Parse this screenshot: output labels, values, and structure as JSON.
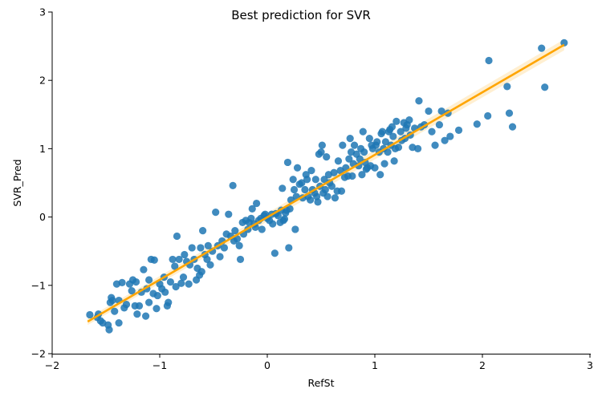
{
  "chart_data": {
    "type": "scatter",
    "title": "Best prediction for SVR",
    "xlabel": "RefSt",
    "ylabel": "SVR_Pred",
    "xlim": [
      -2,
      3
    ],
    "ylim": [
      -2,
      3
    ],
    "xticks": [
      -2,
      -1,
      0,
      1,
      2,
      3
    ],
    "yticks": [
      -2,
      -1,
      0,
      1,
      2,
      3
    ],
    "xtick_labels": [
      "−2",
      "−1",
      "0",
      "1",
      "2",
      "3"
    ],
    "ytick_labels": [
      "−2",
      "−1",
      "0",
      "1",
      "2",
      "3"
    ],
    "grid": false,
    "colors": {
      "points": "#1f77b4",
      "regression": "#ffa500",
      "ci_band": "#ffd27a"
    },
    "points": [
      [
        -1.65,
        -1.43
      ],
      [
        -1.58,
        -1.47
      ],
      [
        -1.55,
        -1.52
      ],
      [
        -1.57,
        -1.42
      ],
      [
        -1.53,
        -1.55
      ],
      [
        -1.48,
        -1.58
      ],
      [
        -1.47,
        -1.65
      ],
      [
        -1.46,
        -1.25
      ],
      [
        -1.45,
        -1.18
      ],
      [
        -1.44,
        -1.22
      ],
      [
        -1.42,
        -1.38
      ],
      [
        -1.4,
        -0.98
      ],
      [
        -1.38,
        -1.55
      ],
      [
        -1.38,
        -1.22
      ],
      [
        -1.35,
        -0.96
      ],
      [
        -1.33,
        -1.33
      ],
      [
        -1.31,
        -1.28
      ],
      [
        -1.28,
        -0.98
      ],
      [
        -1.26,
        -1.08
      ],
      [
        -1.25,
        -0.92
      ],
      [
        -1.23,
        -1.3
      ],
      [
        -1.22,
        -0.95
      ],
      [
        -1.21,
        -1.42
      ],
      [
        -1.19,
        -1.3
      ],
      [
        -1.17,
        -1.1
      ],
      [
        -1.15,
        -0.77
      ],
      [
        -1.13,
        -1.45
      ],
      [
        -1.12,
        -1.05
      ],
      [
        -1.1,
        -0.92
      ],
      [
        -1.1,
        -1.25
      ],
      [
        -1.08,
        -0.62
      ],
      [
        -1.06,
        -1.12
      ],
      [
        -1.05,
        -0.63
      ],
      [
        -1.03,
        -1.34
      ],
      [
        -1.02,
        -1.15
      ],
      [
        -1.0,
        -0.98
      ],
      [
        -0.98,
        -1.05
      ],
      [
        -0.96,
        -0.88
      ],
      [
        -0.95,
        -1.1
      ],
      [
        -0.93,
        -1.3
      ],
      [
        -0.92,
        -1.25
      ],
      [
        -0.9,
        -0.95
      ],
      [
        -0.88,
        -0.62
      ],
      [
        -0.86,
        -0.72
      ],
      [
        -0.85,
        -1.02
      ],
      [
        -0.84,
        -0.28
      ],
      [
        -0.82,
        -0.62
      ],
      [
        -0.8,
        -0.97
      ],
      [
        -0.78,
        -0.88
      ],
      [
        -0.77,
        -0.55
      ],
      [
        -0.75,
        -0.65
      ],
      [
        -0.73,
        -0.98
      ],
      [
        -0.72,
        -0.7
      ],
      [
        -0.7,
        -0.45
      ],
      [
        -0.68,
        -0.62
      ],
      [
        -0.66,
        -0.92
      ],
      [
        -0.65,
        -0.75
      ],
      [
        -0.63,
        -0.85
      ],
      [
        -0.62,
        -0.45
      ],
      [
        -0.61,
        -0.8
      ],
      [
        -0.6,
        -0.2
      ],
      [
        -0.58,
        -0.55
      ],
      [
        -0.56,
        -0.62
      ],
      [
        -0.55,
        -0.42
      ],
      [
        -0.53,
        -0.7
      ],
      [
        -0.51,
        -0.5
      ],
      [
        -0.48,
        0.07
      ],
      [
        -0.46,
        -0.42
      ],
      [
        -0.44,
        -0.58
      ],
      [
        -0.42,
        -0.35
      ],
      [
        -0.4,
        -0.45
      ],
      [
        -0.38,
        -0.25
      ],
      [
        -0.36,
        0.04
      ],
      [
        -0.34,
        -0.28
      ],
      [
        -0.32,
        0.46
      ],
      [
        -0.31,
        -0.35
      ],
      [
        -0.3,
        -0.2
      ],
      [
        -0.28,
        -0.32
      ],
      [
        -0.26,
        -0.42
      ],
      [
        -0.25,
        -0.62
      ],
      [
        -0.23,
        -0.08
      ],
      [
        -0.22,
        -0.25
      ],
      [
        -0.2,
        -0.05
      ],
      [
        -0.18,
        -0.18
      ],
      [
        -0.17,
        -0.08
      ],
      [
        -0.15,
        -0.02
      ],
      [
        -0.14,
        0.12
      ],
      [
        -0.12,
        -0.1
      ],
      [
        -0.11,
        -0.15
      ],
      [
        -0.1,
        0.2
      ],
      [
        -0.08,
        -0.05
      ],
      [
        -0.06,
        -0.02
      ],
      [
        -0.05,
        -0.18
      ],
      [
        -0.03,
        0.02
      ],
      [
        -0.02,
        0.04
      ],
      [
        0.0,
        -0.02
      ],
      [
        0.02,
        -0.05
      ],
      [
        0.04,
        0.04
      ],
      [
        0.05,
        -0.1
      ],
      [
        0.07,
        -0.53
      ],
      [
        0.08,
        0.05
      ],
      [
        0.1,
        0.02
      ],
      [
        0.12,
        -0.08
      ],
      [
        0.13,
        0.1
      ],
      [
        0.14,
        0.42
      ],
      [
        0.15,
        -0.05
      ],
      [
        0.16,
        -0.03
      ],
      [
        0.17,
        0.06
      ],
      [
        0.18,
        0.1
      ],
      [
        0.19,
        0.8
      ],
      [
        0.2,
        -0.45
      ],
      [
        0.21,
        0.12
      ],
      [
        0.22,
        0.25
      ],
      [
        0.24,
        0.55
      ],
      [
        0.25,
        0.4
      ],
      [
        0.26,
        -0.18
      ],
      [
        0.27,
        0.3
      ],
      [
        0.28,
        0.72
      ],
      [
        0.3,
        0.48
      ],
      [
        0.32,
        0.5
      ],
      [
        0.33,
        0.28
      ],
      [
        0.35,
        0.4
      ],
      [
        0.36,
        0.62
      ],
      [
        0.37,
        0.55
      ],
      [
        0.38,
        0.3
      ],
      [
        0.4,
        0.25
      ],
      [
        0.41,
        0.68
      ],
      [
        0.42,
        0.4
      ],
      [
        0.44,
        0.35
      ],
      [
        0.45,
        0.55
      ],
      [
        0.46,
        0.3
      ],
      [
        0.47,
        0.22
      ],
      [
        0.48,
        0.92
      ],
      [
        0.49,
        0.45
      ],
      [
        0.5,
        0.95
      ],
      [
        0.51,
        1.05
      ],
      [
        0.52,
        0.35
      ],
      [
        0.53,
        0.55
      ],
      [
        0.54,
        0.4
      ],
      [
        0.55,
        0.88
      ],
      [
        0.56,
        0.3
      ],
      [
        0.57,
        0.62
      ],
      [
        0.58,
        0.5
      ],
      [
        0.6,
        0.45
      ],
      [
        0.62,
        0.65
      ],
      [
        0.63,
        0.28
      ],
      [
        0.65,
        0.38
      ],
      [
        0.66,
        0.82
      ],
      [
        0.68,
        0.68
      ],
      [
        0.69,
        0.38
      ],
      [
        0.7,
        1.05
      ],
      [
        0.72,
        0.58
      ],
      [
        0.73,
        0.72
      ],
      [
        0.75,
        0.6
      ],
      [
        0.76,
        0.85
      ],
      [
        0.77,
        1.15
      ],
      [
        0.78,
        0.95
      ],
      [
        0.79,
        0.6
      ],
      [
        0.8,
        0.78
      ],
      [
        0.81,
        1.05
      ],
      [
        0.83,
        0.92
      ],
      [
        0.85,
        0.75
      ],
      [
        0.86,
        0.85
      ],
      [
        0.87,
        1.0
      ],
      [
        0.88,
        0.62
      ],
      [
        0.89,
        1.25
      ],
      [
        0.9,
        0.95
      ],
      [
        0.91,
        0.8
      ],
      [
        0.92,
        0.7
      ],
      [
        0.93,
        0.72
      ],
      [
        0.95,
        1.15
      ],
      [
        0.96,
        0.75
      ],
      [
        0.97,
        1.05
      ],
      [
        0.98,
        1.0
      ],
      [
        1.0,
        0.72
      ],
      [
        1.01,
        1.05
      ],
      [
        1.02,
        1.1
      ],
      [
        1.04,
        0.95
      ],
      [
        1.05,
        0.62
      ],
      [
        1.06,
        1.22
      ],
      [
        1.07,
        1.25
      ],
      [
        1.08,
        1.0
      ],
      [
        1.09,
        0.78
      ],
      [
        1.1,
        1.1
      ],
      [
        1.12,
        0.95
      ],
      [
        1.13,
        1.25
      ],
      [
        1.14,
        1.28
      ],
      [
        1.15,
        1.05
      ],
      [
        1.16,
        1.32
      ],
      [
        1.17,
        1.18
      ],
      [
        1.18,
        0.82
      ],
      [
        1.19,
        1.0
      ],
      [
        1.2,
        1.4
      ],
      [
        1.22,
        1.02
      ],
      [
        1.24,
        1.25
      ],
      [
        1.25,
        1.12
      ],
      [
        1.27,
        1.38
      ],
      [
        1.28,
        1.15
      ],
      [
        1.29,
        1.3
      ],
      [
        1.3,
        1.35
      ],
      [
        1.32,
        1.42
      ],
      [
        1.33,
        1.2
      ],
      [
        1.35,
        1.02
      ],
      [
        1.37,
        1.3
      ],
      [
        1.4,
        1.0
      ],
      [
        1.41,
        1.7
      ],
      [
        1.43,
        1.32
      ],
      [
        1.46,
        1.35
      ],
      [
        1.5,
        1.55
      ],
      [
        1.53,
        1.25
      ],
      [
        1.56,
        1.05
      ],
      [
        1.6,
        1.35
      ],
      [
        1.62,
        1.55
      ],
      [
        1.65,
        1.12
      ],
      [
        1.68,
        1.52
      ],
      [
        1.7,
        1.18
      ],
      [
        1.78,
        1.27
      ],
      [
        1.95,
        1.36
      ],
      [
        2.05,
        1.48
      ],
      [
        2.06,
        2.29
      ],
      [
        2.23,
        1.91
      ],
      [
        2.25,
        1.52
      ],
      [
        2.28,
        1.32
      ],
      [
        2.55,
        2.47
      ],
      [
        2.58,
        1.9
      ],
      [
        2.76,
        2.55
      ]
    ],
    "regression": {
      "x": [
        -1.67,
        2.76
      ],
      "y": [
        -1.53,
        2.52
      ]
    }
  }
}
